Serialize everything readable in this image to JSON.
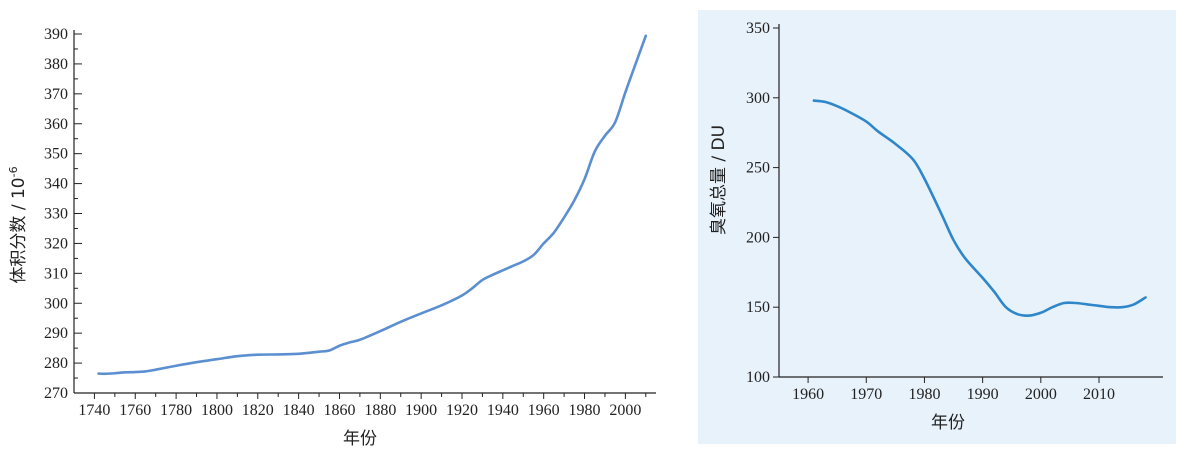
{
  "chart_data": [
    {
      "type": "line",
      "xlabel": "年份",
      "ylabel": "体积分数 / 10",
      "ylabel_superscript": "-6",
      "xlim": [
        1730,
        2015
      ],
      "ylim": [
        270,
        390
      ],
      "xticks": [
        1740,
        1760,
        1780,
        1800,
        1820,
        1840,
        1860,
        1880,
        1900,
        1920,
        1940,
        1960,
        1980,
        2000
      ],
      "yticks": [
        270,
        280,
        290,
        300,
        310,
        320,
        330,
        340,
        350,
        360,
        370,
        380,
        390
      ],
      "grid": false,
      "background": "#ffffff",
      "line_color": "#5b8fd0",
      "series": [
        {
          "x": [
            1742,
            1745,
            1750,
            1755,
            1760,
            1765,
            1770,
            1780,
            1790,
            1800,
            1810,
            1820,
            1830,
            1840,
            1850,
            1855,
            1860,
            1865,
            1870,
            1880,
            1890,
            1900,
            1910,
            1920,
            1925,
            1930,
            1935,
            1940,
            1945,
            1950,
            1955,
            1960,
            1965,
            1970,
            1975,
            1980,
            1985,
            1990,
            1995,
            2000,
            2005,
            2010
          ],
          "y": [
            276.5,
            276.4,
            276.6,
            276.9,
            277.0,
            277.2,
            277.8,
            279.1,
            280.3,
            281.3,
            282.3,
            282.8,
            282.9,
            283.1,
            283.8,
            284.2,
            285.8,
            286.9,
            287.8,
            290.7,
            293.8,
            296.6,
            299.3,
            302.6,
            305.0,
            307.8,
            309.5,
            311.0,
            312.5,
            314.0,
            316.1,
            320.0,
            323.6,
            328.7,
            334.4,
            341.5,
            350.7,
            356.0,
            360.5,
            370.5,
            380.0,
            389.4
          ]
        }
      ]
    },
    {
      "type": "line",
      "xlabel": "年份",
      "ylabel": "臭氧总量 / DU",
      "xlim": [
        1955,
        2021
      ],
      "ylim": [
        100,
        350
      ],
      "xticks": [
        1960,
        1970,
        1980,
        1990,
        2000,
        2010
      ],
      "yticks": [
        100,
        150,
        200,
        250,
        300,
        350
      ],
      "grid": false,
      "background": "#e8f2fa",
      "line_color": "#2f86c9",
      "series": [
        {
          "x": [
            1961,
            1963,
            1965,
            1967,
            1970,
            1972,
            1975,
            1978,
            1980,
            1983,
            1985,
            1987,
            1990,
            1992,
            1994,
            1996,
            1998,
            2000,
            2002,
            2004,
            2006,
            2008,
            2010,
            2012,
            2014,
            2016,
            2018
          ],
          "y": [
            298,
            297,
            294,
            290,
            283,
            276,
            267,
            256,
            242,
            216,
            198,
            185,
            171,
            161,
            150,
            145,
            144,
            146,
            150,
            153,
            153,
            152,
            151,
            150,
            150,
            152,
            157
          ]
        }
      ]
    }
  ]
}
